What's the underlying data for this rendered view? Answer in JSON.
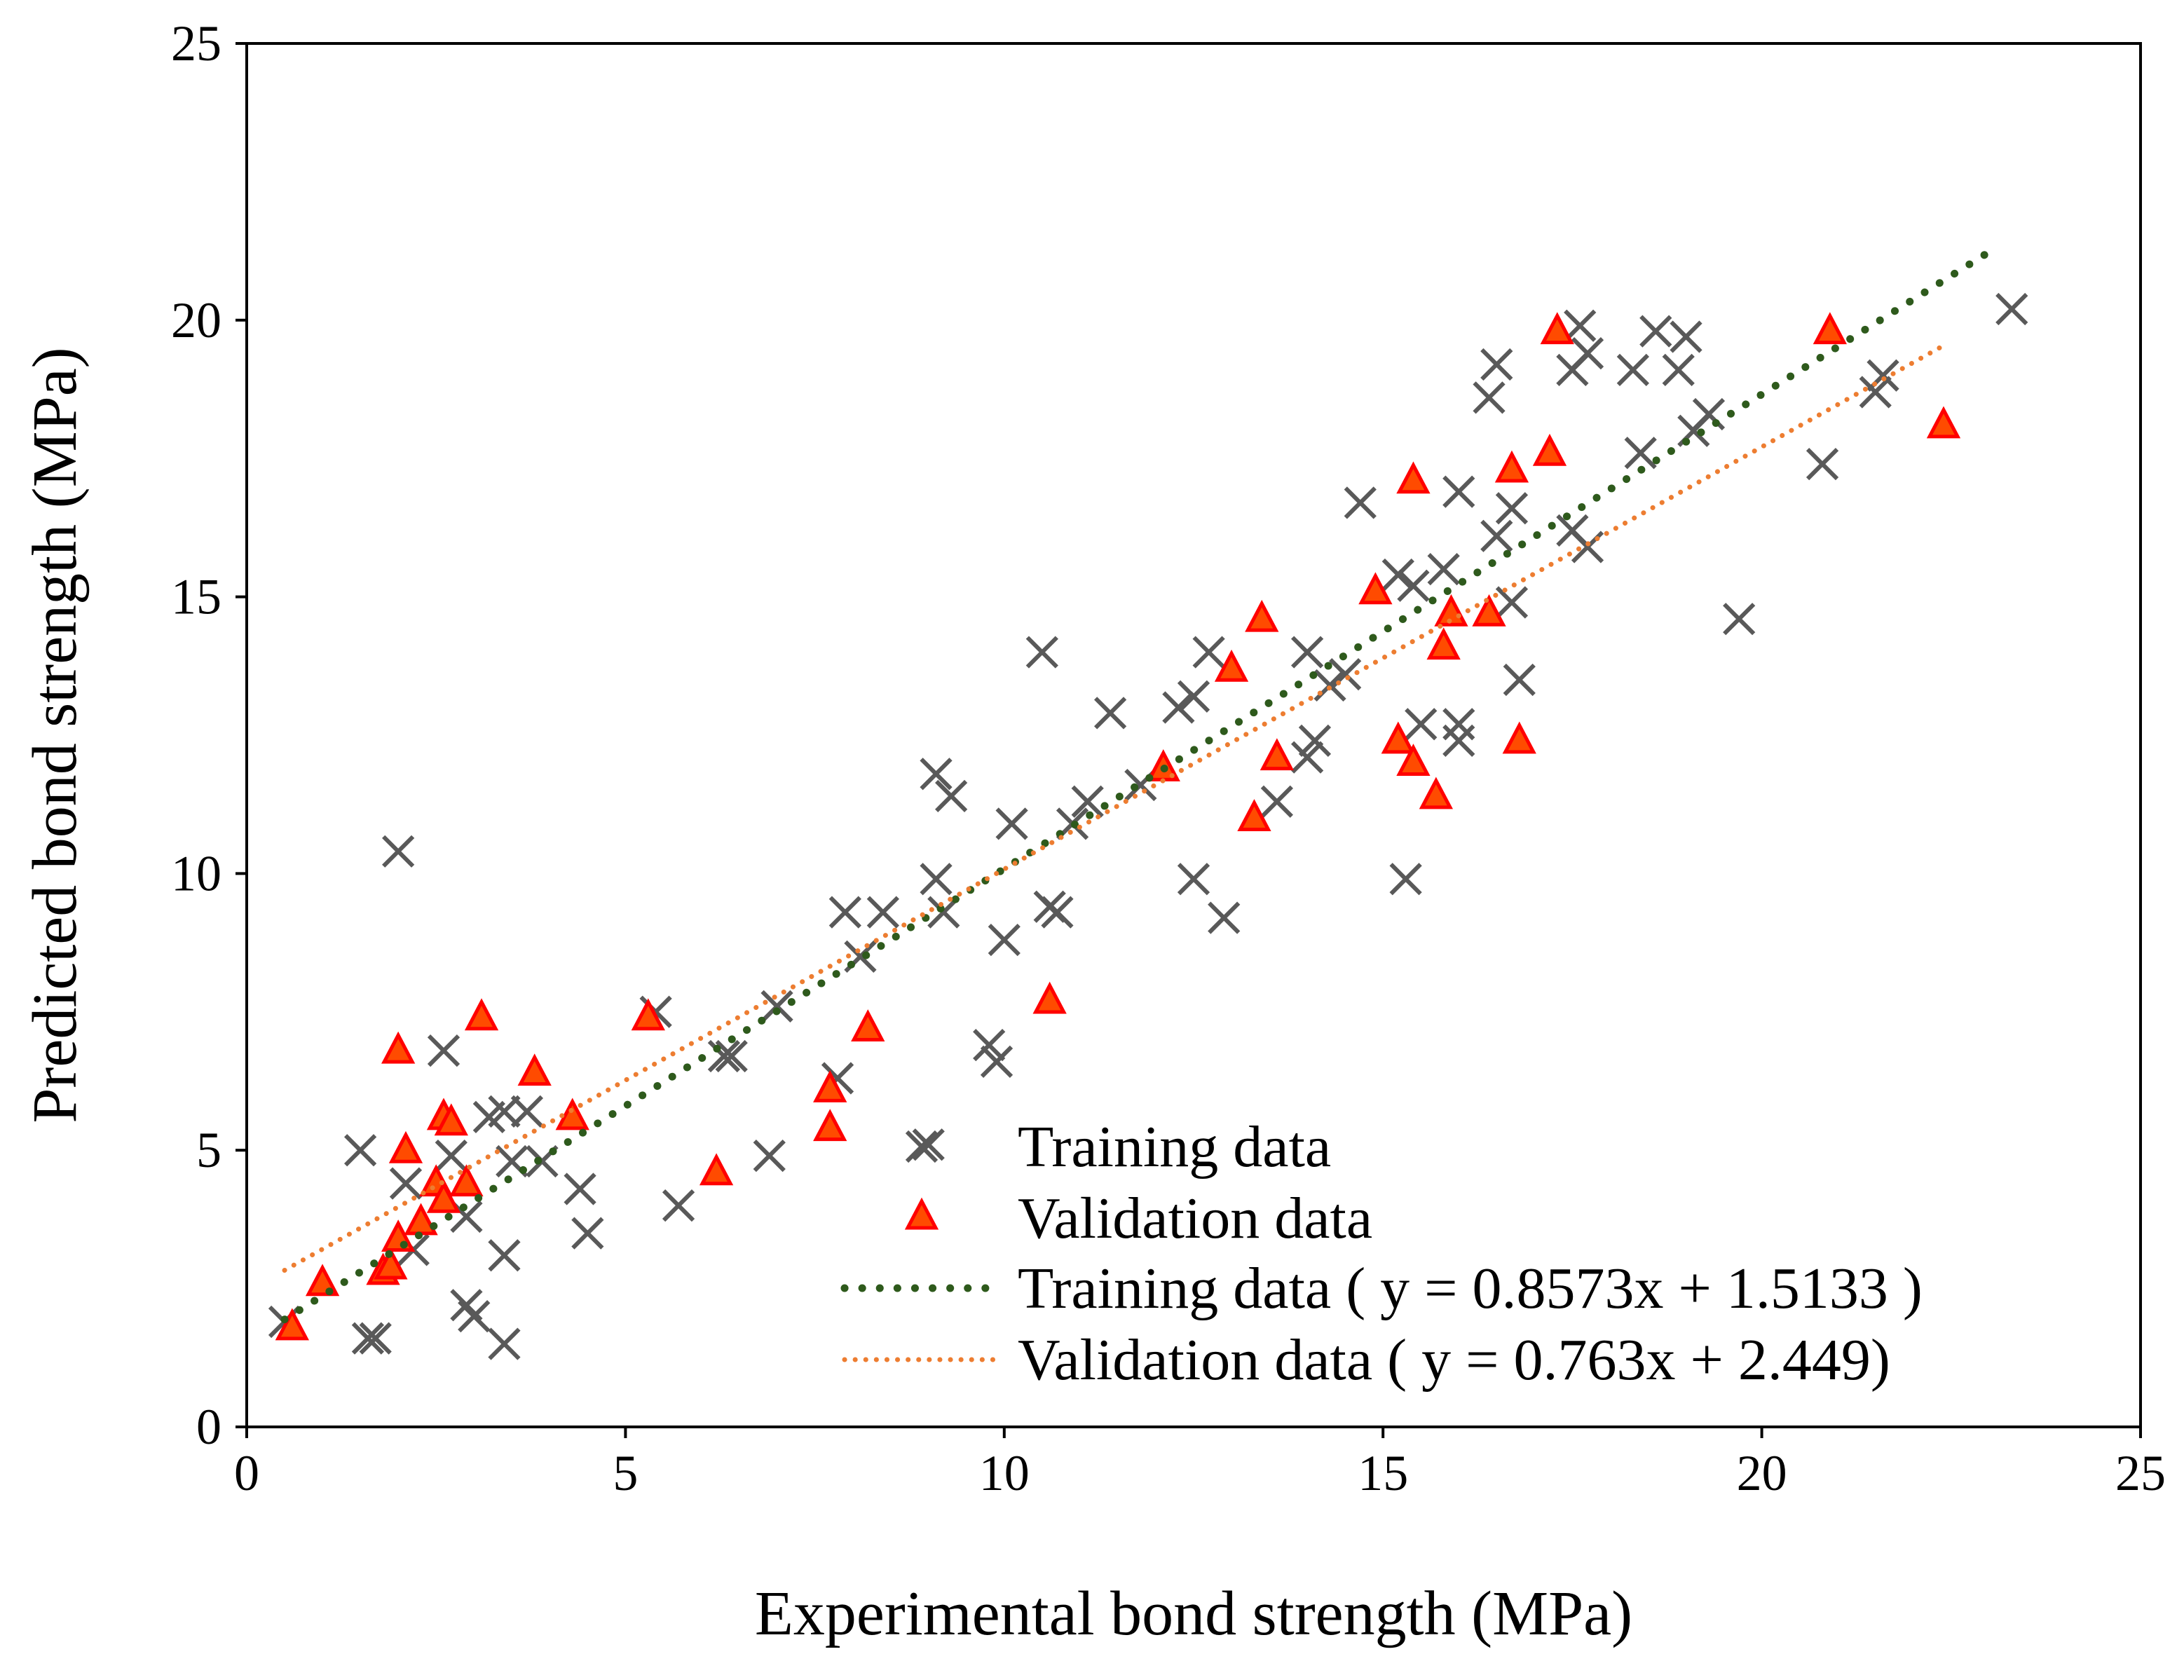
{
  "chart_data": {
    "type": "scatter",
    "title": "",
    "xlabel": "Experimental bond strength (MPa)",
    "ylabel": "Predicted bond strength (MPa)",
    "xlim": [
      0,
      25
    ],
    "ylim": [
      0,
      25
    ],
    "x_ticks": [
      "0",
      "5",
      "10",
      "15",
      "20",
      "25"
    ],
    "y_ticks": [
      "0",
      "5",
      "10",
      "15",
      "20",
      "25"
    ],
    "grid": false,
    "legend_position": "bottom-right",
    "colors": {
      "training_marker": "#595959",
      "validation_fill": "#ff4b00",
      "validation_edge": "#ff0000",
      "training_trend": "#2e5a1c",
      "validation_trend": "#ed7d31"
    },
    "series": [
      {
        "name": "Training data",
        "marker": "x",
        "points": [
          [
            0.5,
            1.9
          ],
          [
            1.5,
            5.0
          ],
          [
            1.6,
            1.6
          ],
          [
            1.7,
            1.6
          ],
          [
            2.0,
            10.4
          ],
          [
            2.1,
            4.4
          ],
          [
            2.2,
            3.2
          ],
          [
            2.6,
            6.8
          ],
          [
            2.7,
            4.9
          ],
          [
            2.9,
            3.8
          ],
          [
            2.9,
            2.2
          ],
          [
            3.0,
            2.0
          ],
          [
            3.2,
            5.6
          ],
          [
            3.4,
            5.7
          ],
          [
            3.4,
            3.1
          ],
          [
            3.4,
            1.5
          ],
          [
            3.5,
            4.8
          ],
          [
            3.7,
            5.7
          ],
          [
            3.9,
            4.8
          ],
          [
            4.4,
            4.3
          ],
          [
            4.5,
            3.5
          ],
          [
            5.4,
            7.5
          ],
          [
            5.7,
            4.0
          ],
          [
            6.3,
            6.7
          ],
          [
            6.4,
            6.7
          ],
          [
            6.9,
            4.9
          ],
          [
            7.0,
            7.6
          ],
          [
            7.8,
            6.3
          ],
          [
            7.9,
            9.3
          ],
          [
            8.1,
            8.5
          ],
          [
            8.4,
            9.3
          ],
          [
            9.0,
            5.1
          ],
          [
            9.1,
            9.9
          ],
          [
            9.1,
            11.8
          ],
          [
            9.3,
            11.4
          ],
          [
            9.2,
            9.3
          ],
          [
            9.8,
            6.9
          ],
          [
            9.9,
            6.6
          ],
          [
            10.0,
            8.8
          ],
          [
            10.1,
            10.9
          ],
          [
            10.5,
            14.0
          ],
          [
            10.6,
            9.4
          ],
          [
            10.7,
            9.3
          ],
          [
            10.9,
            10.9
          ],
          [
            11.1,
            11.3
          ],
          [
            11.4,
            12.9
          ],
          [
            11.8,
            11.6
          ],
          [
            12.3,
            13.0
          ],
          [
            12.5,
            13.2
          ],
          [
            12.5,
            9.9
          ],
          [
            12.7,
            14.0
          ],
          [
            12.9,
            9.2
          ],
          [
            13.6,
            11.3
          ],
          [
            14.0,
            14.0
          ],
          [
            14.0,
            12.1
          ],
          [
            14.1,
            12.4
          ],
          [
            14.3,
            13.4
          ],
          [
            14.5,
            13.6
          ],
          [
            14.7,
            16.7
          ],
          [
            15.2,
            15.4
          ],
          [
            15.3,
            9.9
          ],
          [
            15.4,
            15.2
          ],
          [
            15.5,
            12.7
          ],
          [
            15.8,
            15.5
          ],
          [
            16.0,
            16.9
          ],
          [
            16.0,
            12.7
          ],
          [
            16.0,
            12.4
          ],
          [
            16.4,
            18.6
          ],
          [
            16.5,
            19.2
          ],
          [
            16.5,
            16.1
          ],
          [
            16.7,
            16.6
          ],
          [
            16.7,
            14.9
          ],
          [
            16.8,
            13.5
          ],
          [
            17.5,
            19.1
          ],
          [
            17.5,
            16.2
          ],
          [
            17.6,
            19.9
          ],
          [
            17.7,
            15.9
          ],
          [
            17.7,
            19.4
          ],
          [
            18.3,
            19.1
          ],
          [
            18.4,
            17.6
          ],
          [
            18.6,
            19.8
          ],
          [
            18.9,
            19.1
          ],
          [
            19.0,
            19.7
          ],
          [
            19.1,
            18.0
          ],
          [
            19.3,
            18.3
          ],
          [
            19.7,
            14.6
          ],
          [
            20.8,
            17.4
          ],
          [
            21.5,
            18.7
          ],
          [
            21.6,
            19.0
          ],
          [
            23.3,
            20.2
          ]
        ]
      },
      {
        "name": "Validation data",
        "marker": "triangle",
        "points": [
          [
            0.6,
            1.8
          ],
          [
            1.0,
            2.6
          ],
          [
            1.8,
            2.8
          ],
          [
            1.9,
            2.9
          ],
          [
            2.0,
            3.4
          ],
          [
            2.0,
            6.8
          ],
          [
            2.1,
            5.0
          ],
          [
            2.3,
            3.7
          ],
          [
            2.5,
            4.4
          ],
          [
            2.6,
            4.1
          ],
          [
            2.6,
            5.6
          ],
          [
            2.7,
            5.5
          ],
          [
            2.9,
            4.4
          ],
          [
            3.1,
            7.4
          ],
          [
            3.8,
            6.4
          ],
          [
            4.3,
            5.6
          ],
          [
            5.3,
            7.4
          ],
          [
            6.2,
            4.6
          ],
          [
            7.7,
            5.4
          ],
          [
            7.7,
            6.1
          ],
          [
            8.2,
            7.2
          ],
          [
            10.6,
            7.7
          ],
          [
            12.1,
            11.9
          ],
          [
            13.0,
            13.7
          ],
          [
            13.3,
            11.0
          ],
          [
            13.4,
            14.6
          ],
          [
            13.6,
            12.1
          ],
          [
            14.9,
            15.1
          ],
          [
            15.2,
            12.4
          ],
          [
            15.4,
            17.1
          ],
          [
            15.4,
            12.0
          ],
          [
            15.7,
            11.4
          ],
          [
            15.8,
            14.1
          ],
          [
            15.9,
            14.7
          ],
          [
            16.4,
            14.7
          ],
          [
            16.7,
            17.3
          ],
          [
            16.8,
            12.4
          ],
          [
            17.2,
            17.6
          ],
          [
            17.3,
            19.8
          ],
          [
            20.9,
            19.8
          ],
          [
            22.4,
            18.1
          ]
        ]
      }
    ],
    "trendlines": [
      {
        "name": "Training data",
        "label": "Training data ( y = 0.8573x + 1.5133 )",
        "slope": 0.8573,
        "intercept": 1.5133,
        "x_range": [
          0.5,
          23.1
        ]
      },
      {
        "name": "Validation data",
        "label": "Validation data ( y = 0.763x + 2.449)",
        "slope": 0.763,
        "intercept": 2.449,
        "x_range": [
          0.5,
          22.4
        ]
      }
    ]
  }
}
